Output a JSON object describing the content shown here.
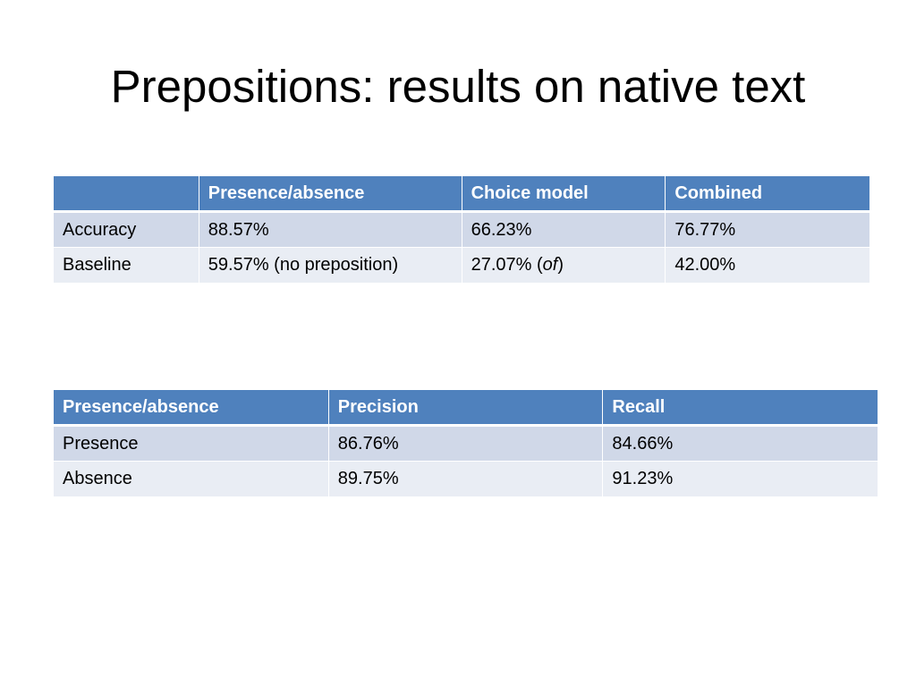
{
  "slide": {
    "title": "Prepositions: results on native text"
  },
  "results_table": {
    "headers": [
      "",
      "Presence/absence",
      "Choice model",
      "Combined"
    ],
    "rows": [
      {
        "label": "Accuracy",
        "presence_absence": "88.57%",
        "choice_model": "66.23%",
        "combined": "76.77%"
      },
      {
        "label": "Baseline",
        "presence_absence": "59.57% (no preposition)",
        "choice_model_prefix": "27.07% (",
        "choice_model_italic": "of",
        "choice_model_suffix": ")",
        "combined": "42.00%"
      }
    ]
  },
  "precision_recall_table": {
    "headers": [
      "Presence/absence",
      "Precision",
      "Recall"
    ],
    "rows": [
      {
        "label": "Presence",
        "precision": "86.76%",
        "recall": "84.66%"
      },
      {
        "label": "Absence",
        "precision": "89.75%",
        "recall": "91.23%"
      }
    ]
  },
  "colors": {
    "header_bg": "#4f81bd",
    "row_odd_bg": "#d0d8e8",
    "row_even_bg": "#e9edf4"
  }
}
